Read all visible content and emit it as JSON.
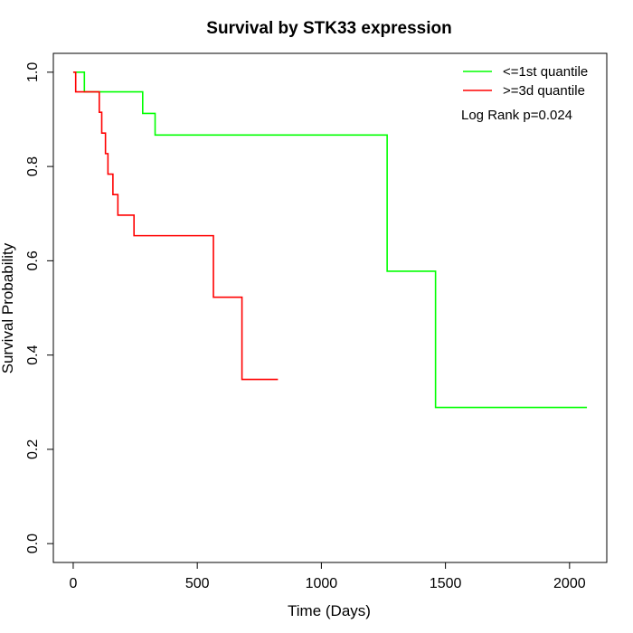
{
  "chart_data": {
    "type": "line",
    "title": "Survival by STK33 expression",
    "xlabel": "Time (Days)",
    "ylabel": "Survival Probability",
    "xlim": [
      -80,
      2150
    ],
    "ylim": [
      -0.04,
      1.04
    ],
    "xticks": [
      0,
      500,
      1000,
      1500,
      2000
    ],
    "yticks": [
      0.0,
      0.2,
      0.4,
      0.6,
      0.8,
      1.0
    ],
    "xtick_labels": [
      "0",
      "500",
      "1000",
      "1500",
      "2000"
    ],
    "ytick_labels": [
      "0.0",
      "0.2",
      "0.4",
      "0.6",
      "0.8",
      "1.0"
    ],
    "grid": false,
    "legend_position": "top-right",
    "annotation": "Log Rank p=0.024",
    "series": [
      {
        "name": "<=1st quantile",
        "color": "#00ff00",
        "step": true,
        "x": [
          0,
          45,
          280,
          330,
          1265,
          1460,
          2070
        ],
        "y": [
          1.0,
          0.9583,
          0.9125,
          0.8667,
          0.5778,
          0.2889,
          0.2889
        ]
      },
      {
        "name": ">=3d quantile",
        "color": "#ff0000",
        "step": true,
        "x": [
          0,
          10,
          105,
          115,
          130,
          140,
          160,
          180,
          245,
          565,
          680,
          825
        ],
        "y": [
          1.0,
          0.9583,
          0.9149,
          0.8708,
          0.8273,
          0.7838,
          0.7403,
          0.6968,
          0.6532,
          0.5226,
          0.3484,
          0.3484
        ]
      }
    ]
  }
}
